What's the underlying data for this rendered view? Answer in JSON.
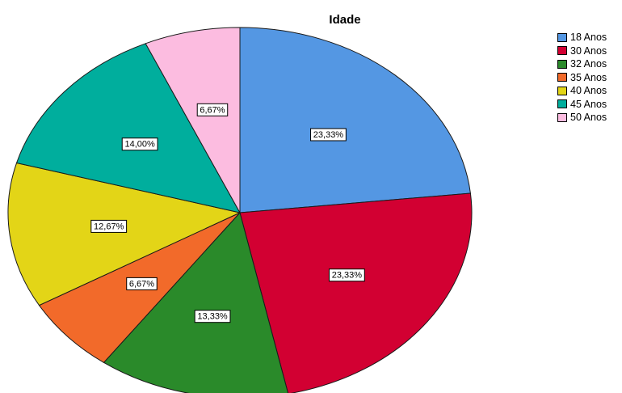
{
  "chart_data": {
    "type": "pie",
    "title": "Idade",
    "categories": [
      "18 Anos",
      "30 Anos",
      "32 Anos",
      "35 Anos",
      "40 Anos",
      "45 Anos",
      "50 Anos"
    ],
    "values": [
      23.33,
      23.33,
      13.33,
      6.67,
      12.67,
      14.0,
      6.67
    ],
    "labels": [
      "23,33%",
      "23,33%",
      "13,33%",
      "6,67%",
      "12,67%",
      "14,00%",
      "6,67%"
    ],
    "colors": [
      "#5497e3",
      "#d20032",
      "#2a8a2a",
      "#f26a2a",
      "#e3d517",
      "#00ae9d",
      "#fcbce0"
    ],
    "legend_position": "top-right"
  }
}
